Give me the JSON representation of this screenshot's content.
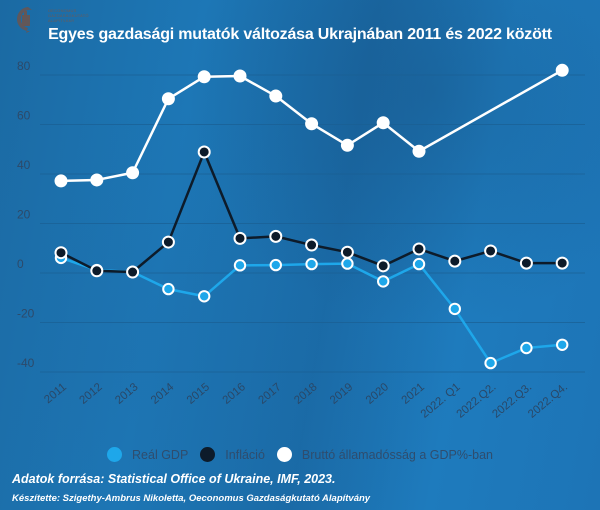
{
  "logo": {
    "lines": [
      "OECONOMUS",
      "GAZDASÁGKUTATÓ",
      "ALAPÍTVÁNY"
    ]
  },
  "chart_data": {
    "type": "line",
    "title": "Egyes gazdasági mutatók változása Ukrajnában 2011 és 2022 között",
    "xlabel": "",
    "ylabel": "",
    "ylim": [
      -40,
      80
    ],
    "yticks": [
      -40,
      -20,
      0,
      20,
      40,
      60,
      80
    ],
    "ytick_labels": [
      "-40",
      "-20",
      "0",
      "20",
      "40",
      "60",
      "80"
    ],
    "grid": true,
    "legend_position": "bottom",
    "categories": [
      "2011",
      "2012",
      "2013",
      "2014",
      "2015",
      "2016",
      "2017",
      "2018",
      "2019",
      "2020",
      "2021",
      "2022. Q1",
      "2022.Q2.",
      "2022.Q3.",
      "2022.Q4."
    ],
    "series": [
      {
        "name": "Reál GDP",
        "color": "#1ea7ea",
        "marker": "hollow",
        "values": [
          6.1,
          1.2,
          0.4,
          -6.5,
          -9.4,
          3.1,
          3.2,
          3.6,
          3.8,
          -3.4,
          3.6,
          -14.5,
          -36.4,
          -30.3,
          -29.0
        ]
      },
      {
        "name": "Infláció",
        "color": "#0d1b2a",
        "marker": "filled",
        "values": [
          8.2,
          0.9,
          0.4,
          12.5,
          48.9,
          14.0,
          14.8,
          11.3,
          8.4,
          2.9,
          9.7,
          4.8,
          8.9,
          4.0,
          4.0
        ]
      },
      {
        "name": "Bruttó államadósság a GDP%-ban",
        "color": "#ffffff",
        "marker": "filled",
        "values": [
          37.2,
          37.6,
          40.5,
          70.4,
          79.3,
          79.6,
          71.5,
          60.3,
          51.6,
          60.7,
          49.2,
          null,
          null,
          null,
          81.9
        ]
      }
    ]
  },
  "footer": {
    "source": "Adatok forrása: Statistical Office of Ukraine, IMF, 2023.",
    "author": "Készítette: Szigethy-Ambrus Nikoletta, Oeconomus Gazdaságkutató Alapítvány"
  }
}
